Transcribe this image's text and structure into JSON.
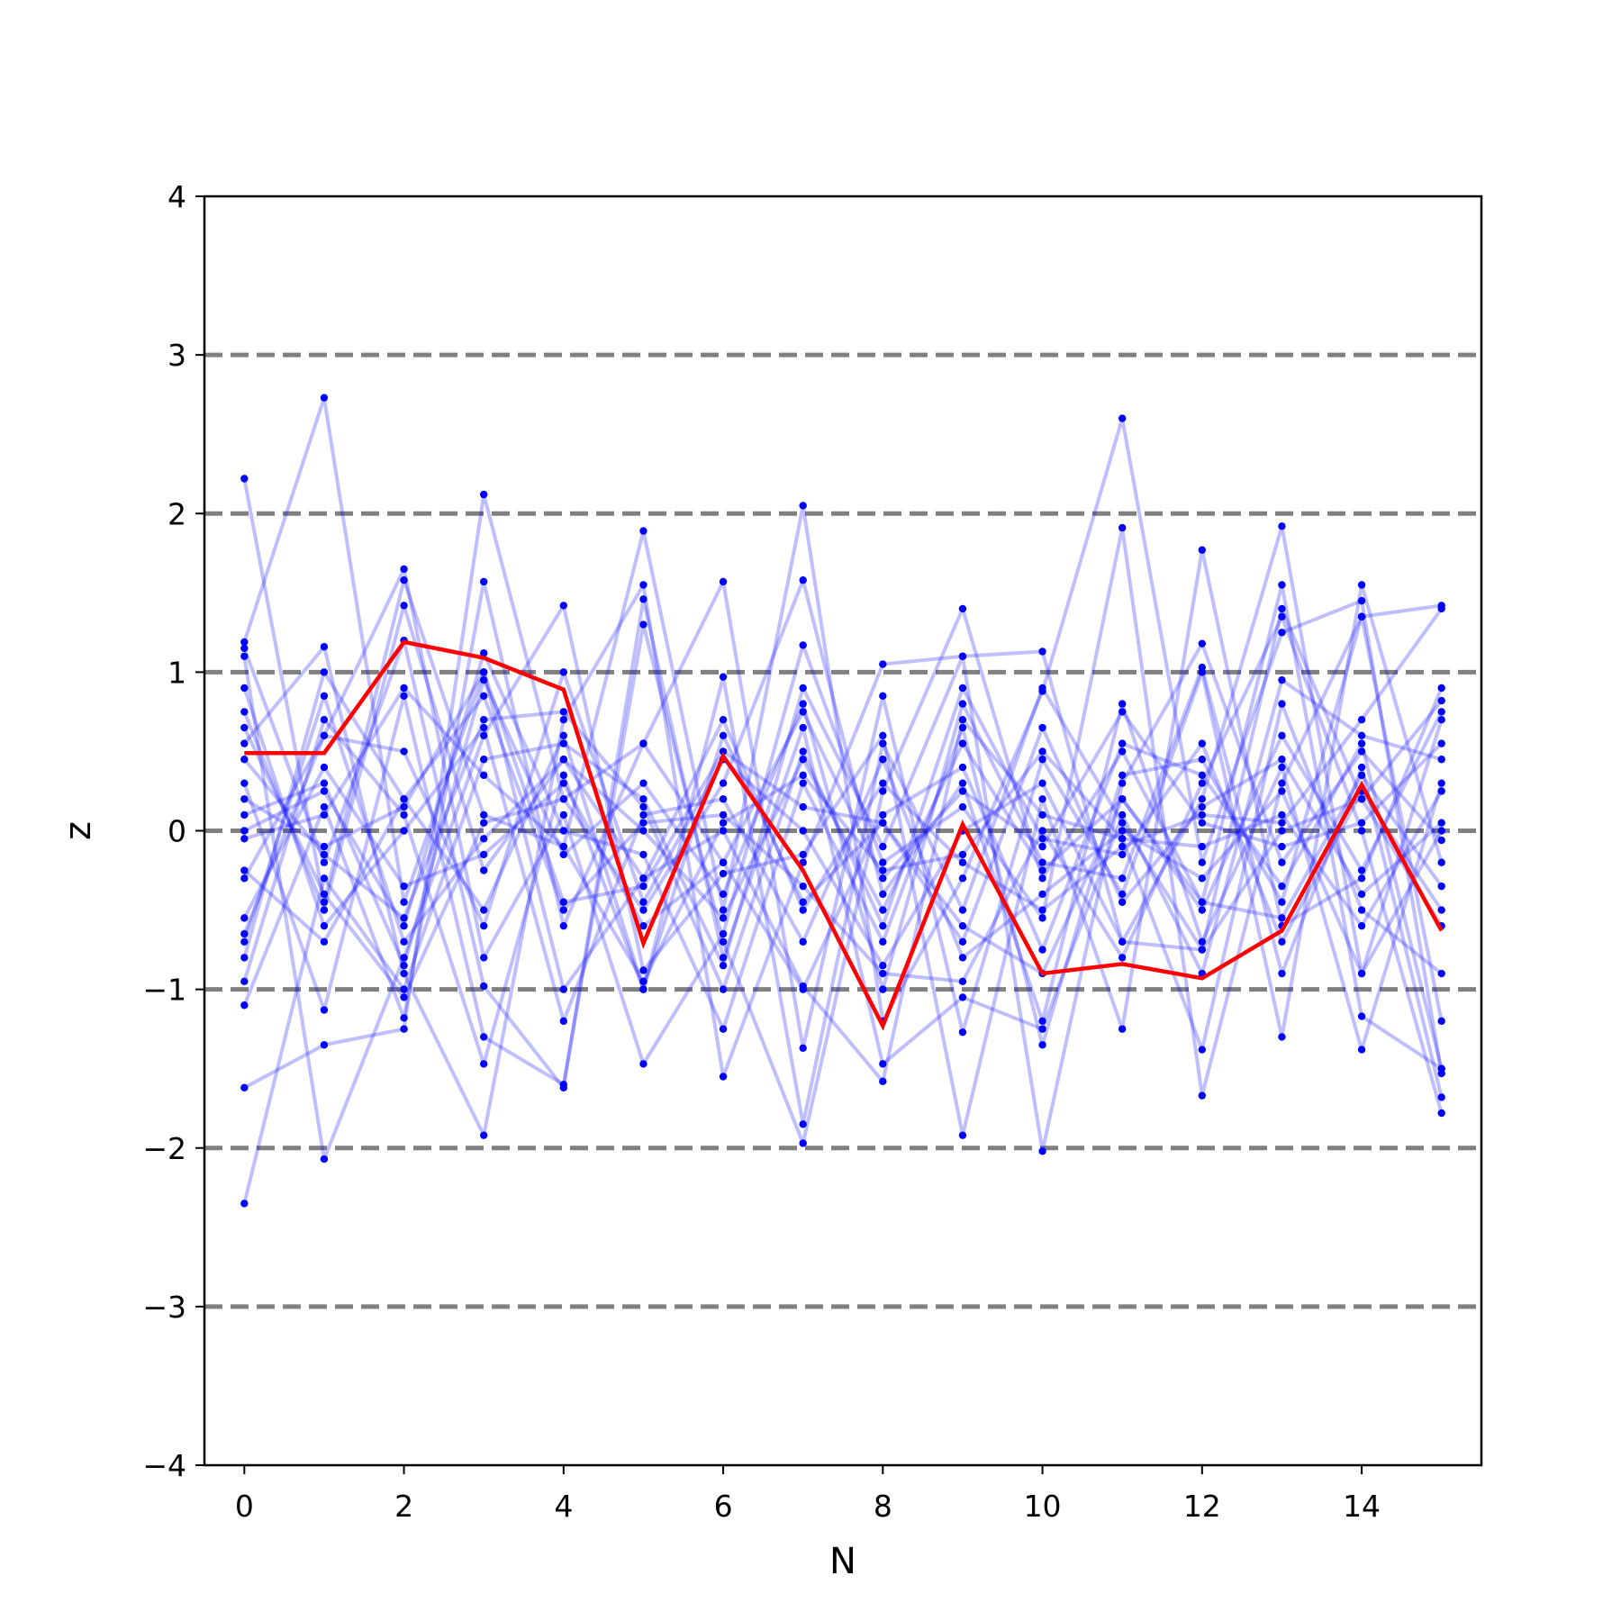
{
  "chart_data": {
    "type": "line",
    "xlabel": "N",
    "ylabel": "z",
    "xlim": [
      -0.5,
      15.5
    ],
    "ylim": [
      -4,
      4
    ],
    "xticks": [
      0,
      2,
      4,
      6,
      8,
      10,
      12,
      14
    ],
    "yticks": [
      -4,
      -3,
      -2,
      -1,
      0,
      1,
      2,
      3,
      4
    ],
    "xtick_labels": [
      "0",
      "2",
      "4",
      "6",
      "8",
      "10",
      "12",
      "14"
    ],
    "ytick_labels": [
      "−4",
      "−3",
      "−2",
      "−1",
      "0",
      "1",
      "2",
      "3",
      "4"
    ],
    "reference_lines": [
      -3,
      -2,
      -1,
      0,
      1,
      2,
      3
    ],
    "reference_line_color": "#808080",
    "grid": false,
    "x": [
      0,
      1,
      2,
      3,
      4,
      5,
      6,
      7,
      8,
      9,
      10,
      11,
      12,
      13,
      14,
      15
    ],
    "background_series_color": "#0000ff",
    "highlight_color": "#ff0000",
    "background_series": [
      {
        "values": [
          2.22,
          -0.45,
          1.58,
          0.1,
          -0.1,
          1.89,
          -0.5,
          2.05,
          -1.2,
          -0.3,
          0.88,
          2.6,
          -0.2,
          1.25,
          1.45,
          -1.53
        ]
      },
      {
        "values": [
          -2.35,
          -0.3,
          -1.0,
          0.45,
          0.55,
          0.2,
          -0.85,
          0.9,
          -0.1,
          1.1,
          -2.02,
          0.3,
          1.18,
          -0.2,
          0.5,
          -0.06
        ]
      },
      {
        "values": [
          1.19,
          2.73,
          -0.45,
          1.0,
          -1.0,
          -0.3,
          0.7,
          -0.5,
          0.3,
          -0.2,
          -0.5,
          -0.1,
          0.1,
          0.05,
          0.7,
          1.4
        ]
      },
      {
        "values": [
          -1.62,
          -1.35,
          -1.25,
          2.12,
          0.2,
          -0.5,
          0.3,
          1.58,
          -0.4,
          0.3,
          -1.2,
          0.8,
          -0.7,
          0.4,
          -1.38,
          0.3
        ]
      },
      {
        "values": [
          1.1,
          -2.07,
          -0.8,
          0.6,
          1.42,
          -0.88,
          -0.27,
          -0.15,
          0.6,
          -1.92,
          0.2,
          -1.25,
          1.77,
          -0.6,
          -0.3,
          0.9
        ]
      },
      {
        "values": [
          0.55,
          1.16,
          -0.9,
          -1.92,
          0.7,
          1.55,
          -1.55,
          -0.2,
          1.05,
          1.1,
          1.13,
          -0.7,
          0.2,
          1.92,
          -0.9,
          0.7
        ]
      },
      {
        "values": [
          -0.65,
          0.6,
          1.65,
          -0.8,
          0.1,
          -1.47,
          -0.65,
          1.17,
          -0.2,
          0.15,
          -0.55,
          1.91,
          -1.67,
          0.3,
          1.35,
          1.42
        ]
      },
      {
        "values": [
          -1.1,
          0.15,
          -1.18,
          1.57,
          -0.6,
          0.55,
          1.57,
          -1.37,
          0.85,
          -1.27,
          0.45,
          -0.4,
          1.0,
          -1.3,
          1.55,
          -0.2
        ]
      },
      {
        "values": [
          0.3,
          -1.13,
          0.85,
          -1.3,
          -1.6,
          1.3,
          -0.7,
          -1.97,
          0.25,
          1.4,
          -0.3,
          0.5,
          -0.45,
          1.55,
          -1.17,
          -1.5
        ]
      },
      {
        "values": [
          0.75,
          -0.5,
          1.42,
          -0.25,
          0.45,
          -0.3,
          0.0,
          -0.98,
          -1.58,
          0.7,
          0.1,
          -0.05,
          -1.38,
          0.8,
          -0.5,
          -0.9
        ]
      },
      {
        "values": [
          -0.95,
          0.7,
          0.1,
          -1.47,
          0.35,
          -1.0,
          0.97,
          -1.85,
          0.55,
          -0.5,
          0.9,
          0.05,
          -0.75,
          1.4,
          0.2,
          0.82
        ]
      },
      {
        "values": [
          0.0,
          0.25,
          -0.6,
          1.12,
          0.0,
          -0.15,
          -1.25,
          0.3,
          -0.7,
          0.65,
          -1.35,
          0.35,
          0.45,
          -0.45,
          1.35,
          -1.2
        ]
      },
      {
        "values": [
          -0.25,
          -0.7,
          0.2,
          0.85,
          -0.5,
          0.05,
          0.1,
          -0.35,
          -0.9,
          -0.95,
          0.0,
          -0.8,
          0.3,
          1.35,
          0.0,
          -1.78
        ]
      },
      {
        "values": [
          1.15,
          -0.2,
          1.2,
          -0.98,
          -1.62,
          1.46,
          -0.8,
          0.65,
          -1.47,
          -1.05,
          -1.25,
          0.1,
          -0.9,
          0.95,
          0.6,
          0.45
        ]
      },
      {
        "values": [
          0.1,
          0.3,
          -0.85,
          0.95,
          -0.15,
          0.3,
          -0.4,
          0.8,
          -1.0,
          0.8,
          -0.2,
          -0.3,
          1.03,
          -0.9,
          0.4,
          -1.68
        ]
      },
      {
        "values": [
          -0.8,
          1.0,
          0.2,
          -0.5,
          0.6,
          -1.0,
          0.6,
          -0.45,
          0.05,
          -0.6,
          -0.9,
          0.2,
          -0.5,
          0.6,
          -0.25,
          0.75
        ]
      },
      {
        "values": [
          0.45,
          -0.15,
          -0.55,
          0.7,
          0.75,
          0.15,
          -1.0,
          0.5,
          -0.6,
          0.9,
          -0.05,
          -0.15,
          0.55,
          -0.7,
          0.25,
          -0.5
        ]
      },
      {
        "values": [
          -0.05,
          0.1,
          0.9,
          0.35,
          -0.1,
          -0.95,
          0.05,
          0.35,
          -0.25,
          -0.15,
          0.5,
          -0.05,
          -0.1,
          0.1,
          -0.6,
          0.25
        ]
      },
      {
        "values": [
          0.65,
          -0.4,
          -1.05,
          0.05,
          0.2,
          0.55,
          -0.2,
          -1.0,
          0.1,
          0.4,
          -0.75,
          0.55,
          0.35,
          -0.35,
          0.55,
          -1.5
        ]
      },
      {
        "values": [
          -0.3,
          0.6,
          0.5,
          -0.6,
          1.0,
          -0.45,
          0.45,
          0.0,
          -0.85,
          0.0,
          0.3,
          -0.7,
          -0.75,
          0.0,
          0.2,
          -0.6
        ]
      },
      {
        "values": [
          0.9,
          -0.6,
          0.0,
          0.65,
          -1.2,
          0.1,
          0.2,
          -0.7,
          0.45,
          -0.8,
          -0.4,
          0.0,
          -0.3,
          0.25,
          -0.9,
          0.0
        ]
      },
      {
        "values": [
          -0.55,
          0.4,
          -0.35,
          -0.15,
          0.3,
          -0.6,
          -0.2,
          0.75,
          -0.3,
          0.25,
          -0.1,
          0.75,
          0.05,
          -0.1,
          0.05,
          0.55
        ]
      },
      {
        "values": [
          0.2,
          -0.1,
          0.15,
          1.0,
          -0.45,
          -0.35,
          0.5,
          0.15,
          0.05,
          -0.7,
          0.65,
          -0.45,
          0.15,
          0.45,
          -0.4,
          0.05
        ]
      },
      {
        "values": [
          -0.7,
          0.85,
          -0.7,
          -0.05,
          0.45,
          0.0,
          -0.55,
          0.45,
          -0.5,
          0.55,
          -0.25,
          0.2,
          -0.45,
          -0.55,
          0.35,
          -0.35
        ]
      }
    ],
    "highlight_series": {
      "values": [
        0.49,
        0.49,
        1.19,
        1.09,
        0.89,
        -0.71,
        0.47,
        -0.25,
        -1.23,
        0.04,
        -0.9,
        -0.84,
        -0.93,
        -0.63,
        0.29,
        -0.63
      ]
    }
  }
}
